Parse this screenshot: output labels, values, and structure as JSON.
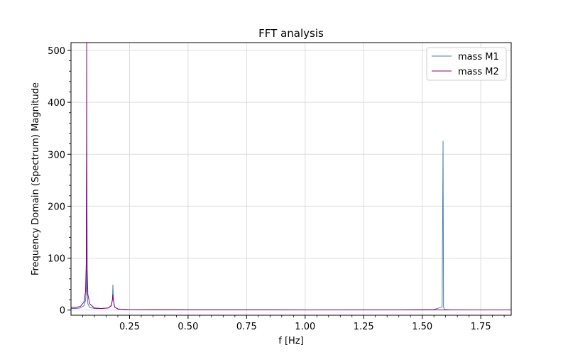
{
  "chart_data": {
    "type": "line",
    "title": "FFT analysis",
    "xlabel": "f [Hz]",
    "ylabel": "Frequency Domain (Spectrum) Magnitude",
    "xlim": [
      0.0,
      1.88
    ],
    "ylim": [
      -10,
      515
    ],
    "xticks": [
      "0.25",
      "0.50",
      "0.75",
      "1.00",
      "1.25",
      "1.50",
      "1.75"
    ],
    "xtick_values": [
      0.25,
      0.5,
      0.75,
      1.0,
      1.25,
      1.5,
      1.75
    ],
    "yticks": [
      "0",
      "100",
      "200",
      "300",
      "400",
      "500"
    ],
    "ytick_values": [
      0,
      100,
      200,
      300,
      400,
      500
    ],
    "grid": true,
    "legend": "top-right",
    "series": [
      {
        "name": "mass M1",
        "color": "#4a7fb0",
        "x": [
          0.0,
          0.02,
          0.04,
          0.055,
          0.062,
          0.0655,
          0.067,
          0.0685,
          0.072,
          0.08,
          0.1,
          0.13,
          0.16,
          0.172,
          0.177,
          0.179,
          0.181,
          0.186,
          0.2,
          0.25,
          0.5,
          1.0,
          1.4,
          1.55,
          1.585,
          1.589,
          1.591,
          1.595,
          1.62,
          1.7,
          1.88
        ],
        "values": [
          3,
          3,
          4,
          8,
          18,
          40,
          320,
          40,
          12,
          5,
          3,
          3,
          4,
          8,
          20,
          49,
          20,
          6,
          2,
          1,
          0.5,
          0.3,
          0.5,
          1,
          6,
          326,
          6,
          1,
          0.5,
          0.3,
          0.2
        ]
      },
      {
        "name": "mass M2",
        "color": "#800080",
        "x": [
          0.0,
          0.02,
          0.04,
          0.055,
          0.062,
          0.065,
          0.0665,
          0.067,
          0.0675,
          0.069,
          0.072,
          0.08,
          0.1,
          0.13,
          0.16,
          0.172,
          0.177,
          0.179,
          0.181,
          0.186,
          0.2,
          0.25,
          0.5,
          1.0,
          1.5,
          1.59,
          1.7,
          1.88
        ],
        "values": [
          5,
          5,
          7,
          15,
          35,
          90,
          300,
          520,
          300,
          80,
          30,
          12,
          4,
          3,
          4,
          9,
          20,
          30,
          20,
          6,
          2,
          1,
          0.5,
          0.3,
          0.3,
          0.3,
          0.2,
          0.2
        ]
      }
    ]
  }
}
